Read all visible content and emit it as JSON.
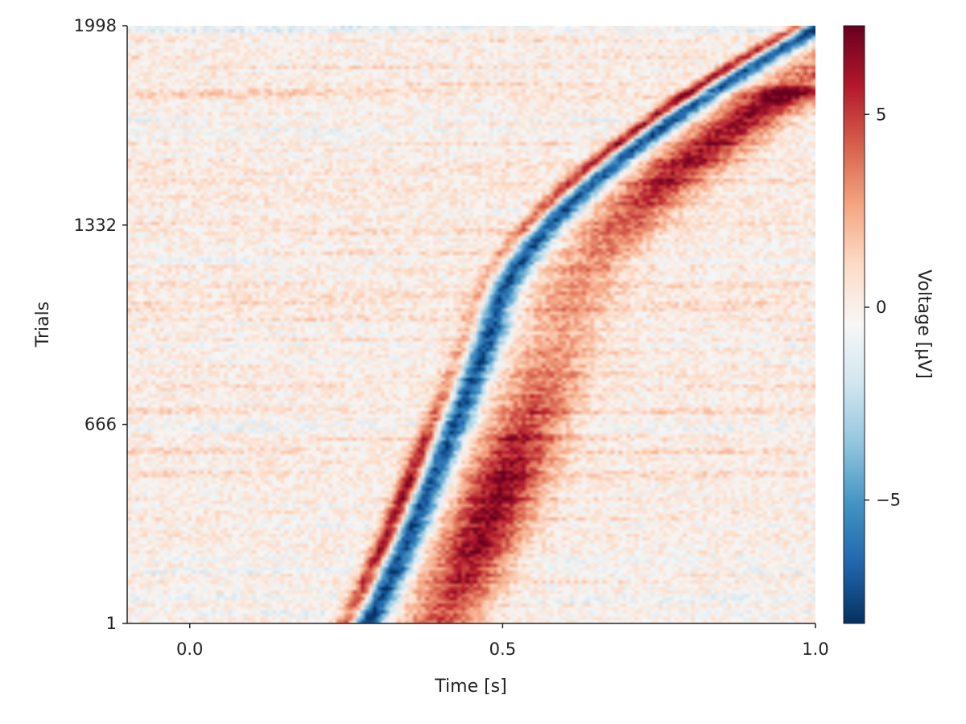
{
  "chart_data": {
    "type": "heatmap",
    "title": "",
    "xlabel": "Time [s]",
    "ylabel": "Trials",
    "colorbar_label": "Voltage [µV]",
    "colormap": "RdBu_r",
    "xlim": [
      -0.1,
      1.0
    ],
    "ylim": [
      1,
      1998
    ],
    "clim": [
      -8.2,
      7.3
    ],
    "x_ticks": [
      {
        "value": 0.0,
        "label": "0.0"
      },
      {
        "value": 0.5,
        "label": "0.5"
      },
      {
        "value": 1.0,
        "label": "1.0"
      }
    ],
    "y_ticks": [
      {
        "value": 1,
        "label": "1"
      },
      {
        "value": 666,
        "label": "666"
      },
      {
        "value": 1332,
        "label": "1332"
      },
      {
        "value": 1998,
        "label": "1998"
      }
    ],
    "colorbar_ticks": [
      {
        "value": 5,
        "label": "5"
      },
      {
        "value": 0,
        "label": "0"
      },
      {
        "value": -5,
        "label": "−5"
      }
    ],
    "trials_sorted_by": "onset of early positive deflection",
    "pattern": {
      "early_positive_onset_s": {
        "first_trial": 0.24,
        "middle_trial": 0.44,
        "last_trial": 0.96
      },
      "negative_peak_delay_after_onset_s": 0.04,
      "late_positive_delay_after_onset_s": 0.16,
      "peak_positive_uV": 7,
      "peak_negative_uV": -8
    },
    "grid": false,
    "legend": "none"
  }
}
